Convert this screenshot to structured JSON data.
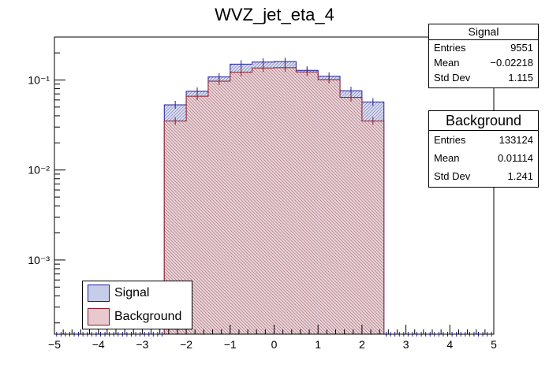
{
  "chart_data": {
    "type": "bar",
    "title": "WVZ_jet_eta_4",
    "xlabel": "",
    "ylabel": "",
    "xlim": [
      -5,
      5
    ],
    "ylim": [
      0.00015,
      0.3
    ],
    "yscale": "log",
    "x_tick_labels": [
      "−5",
      "−4",
      "−3",
      "−2",
      "−1",
      "0",
      "1",
      "2",
      "3",
      "4",
      "5"
    ],
    "y_tick_labels": [
      "10⁻³",
      "10⁻²",
      "10⁻¹"
    ],
    "bin_edges": [
      -2.5,
      -2.0,
      -1.5,
      -1.0,
      -0.5,
      0.0,
      0.5,
      1.0,
      1.5,
      2.0,
      2.5
    ],
    "series": [
      {
        "name": "Signal",
        "values": [
          0.053,
          0.075,
          0.108,
          0.15,
          0.158,
          0.16,
          0.128,
          0.11,
          0.076,
          0.057
        ],
        "line_color": "#1f1fa0",
        "fill_color": "#c6cde8"
      },
      {
        "name": "Background",
        "values": [
          0.035,
          0.066,
          0.097,
          0.122,
          0.136,
          0.137,
          0.123,
          0.101,
          0.064,
          0.035
        ],
        "line_color": "#8b1a2b",
        "fill_color": "#e8c9cf"
      }
    ],
    "legend_position": "bottom-left",
    "grid": false
  },
  "stats": {
    "signal": {
      "title": "Signal",
      "rows": [
        [
          "Entries",
          "9551"
        ],
        [
          "Mean",
          "−0.02218"
        ],
        [
          "Std Dev",
          "1.115"
        ]
      ]
    },
    "background": {
      "title": "Background",
      "rows": [
        [
          "Entries",
          "133124"
        ],
        [
          "Mean",
          "0.01114"
        ],
        [
          "Std Dev",
          "1.241"
        ]
      ]
    }
  },
  "legend": {
    "items": [
      "Signal",
      "Background"
    ]
  }
}
